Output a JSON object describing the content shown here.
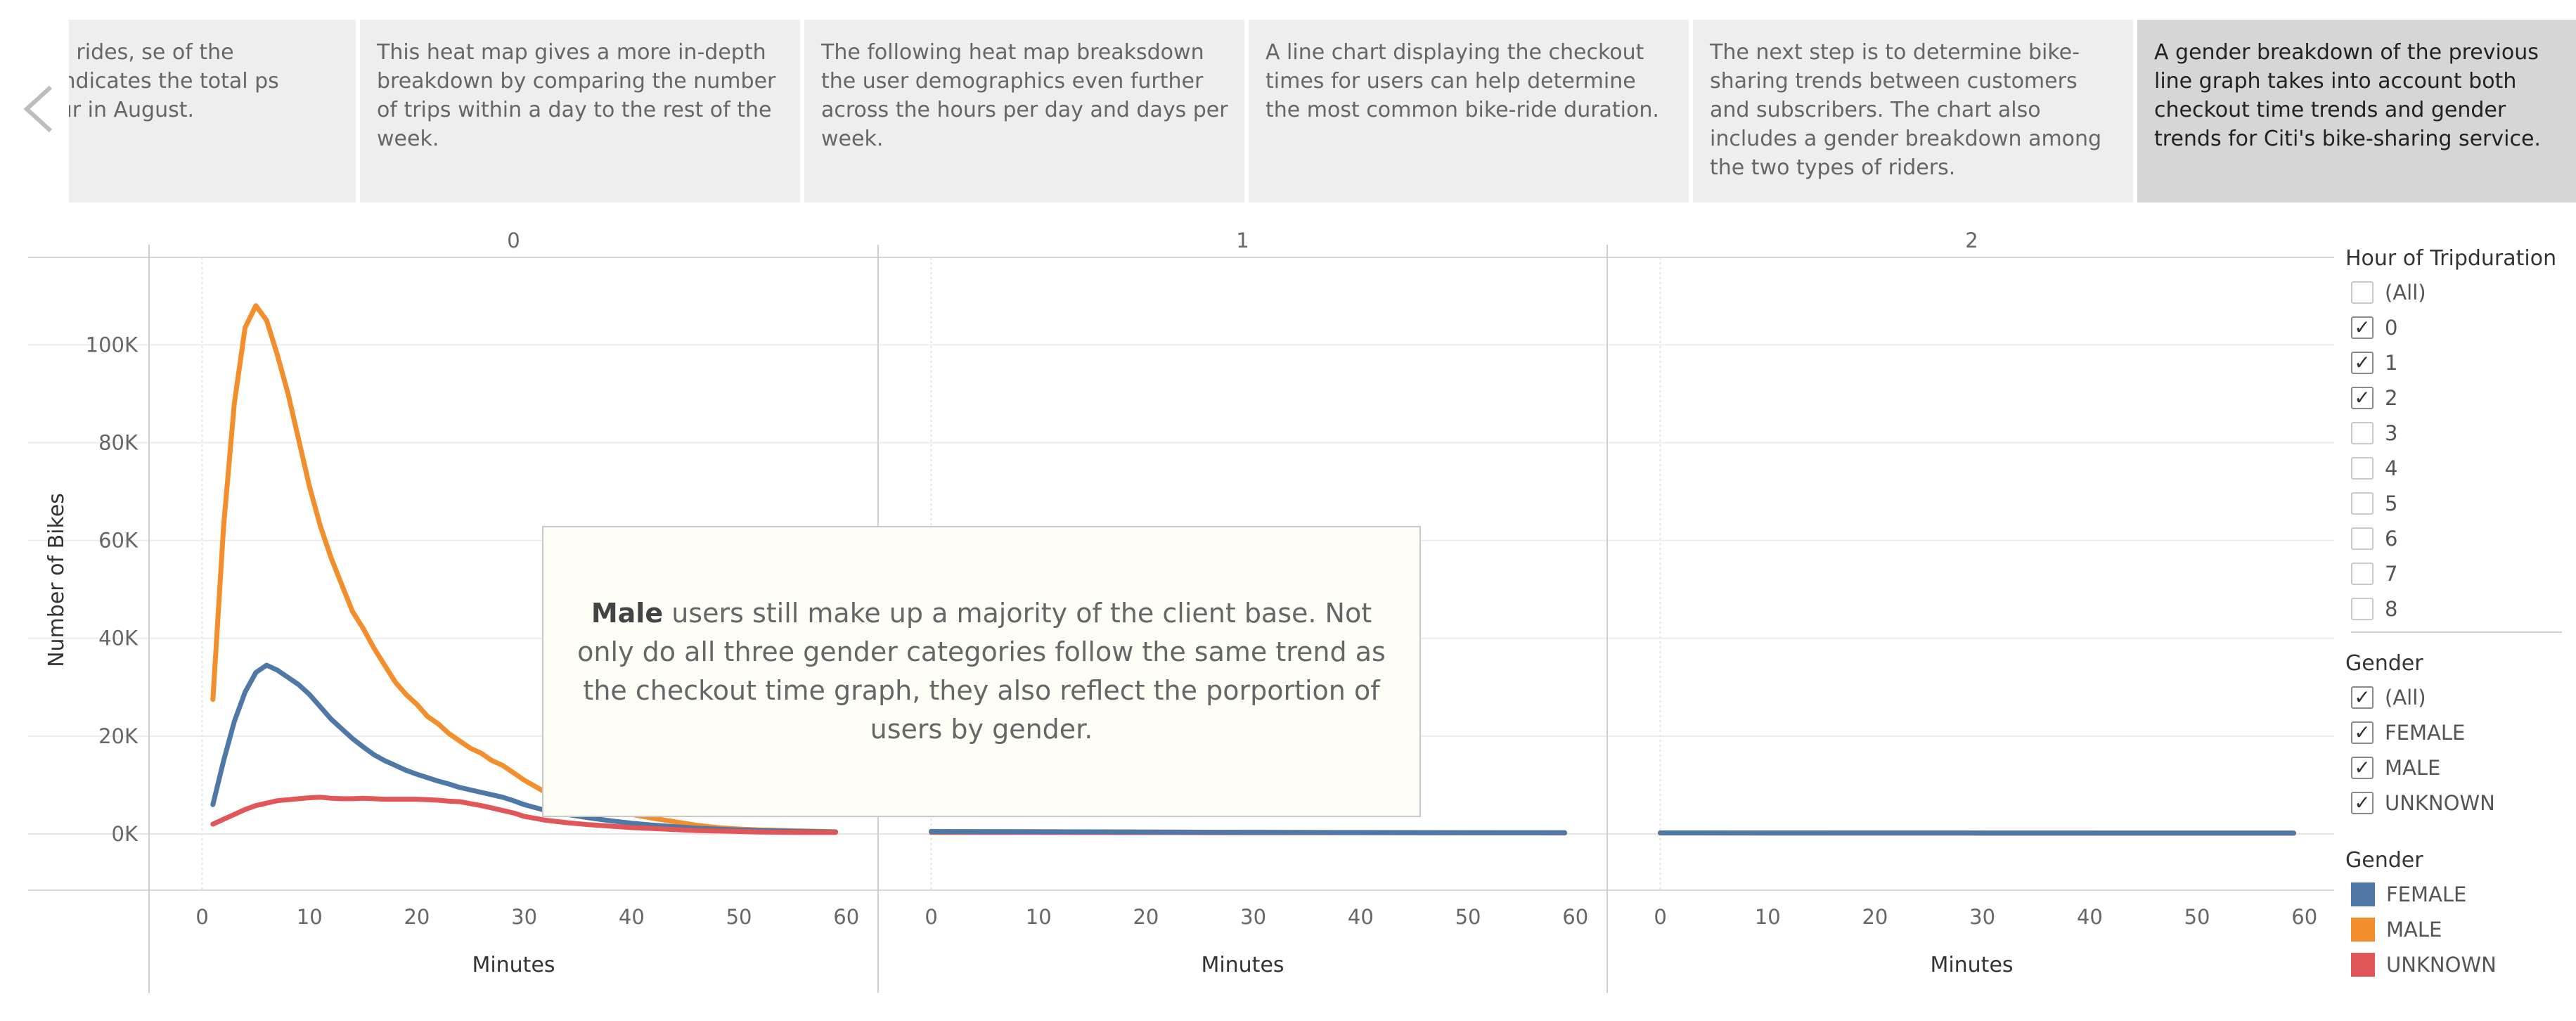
{
  "story": {
    "points": [
      {
        "text": "perfect time for bike rides, se of the comfortable graph indicates the total ps made at a given hour in August.",
        "active": false
      },
      {
        "text": "This heat map gives a more in-depth breakdown by comparing the number of trips within a day to the rest of the week.",
        "active": false
      },
      {
        "text": "The following heat map breaksdown the user demographics even further across the hours per day and days per week.",
        "active": false
      },
      {
        "text": "A line chart displaying the checkout times for users can help determine the most common bike-ride duration.",
        "active": false
      },
      {
        "text": "The next step is to determine bike-sharing trends between customers and subscribers. The chart also includes a gender breakdown among the two types of riders.",
        "active": false
      },
      {
        "text": "A gender breakdown of the previous line graph takes into account both checkout time trends and gender trends for Citi's bike-sharing service.",
        "active": true
      }
    ],
    "prev_icon": "chevron-left-icon"
  },
  "annotation": {
    "bold": "Male",
    "text": " users still make up a majority of the client base. Not only do all three gender categories follow the same trend as the checkout time graph, they also reflect the porportion of users by gender."
  },
  "filters": {
    "hour": {
      "title": "Hour of Tripduration",
      "items": [
        {
          "label": "(All)",
          "checked": false
        },
        {
          "label": "0",
          "checked": true
        },
        {
          "label": "1",
          "checked": true
        },
        {
          "label": "2",
          "checked": true
        },
        {
          "label": "3",
          "checked": false
        },
        {
          "label": "4",
          "checked": false
        },
        {
          "label": "5",
          "checked": false
        },
        {
          "label": "6",
          "checked": false
        },
        {
          "label": "7",
          "checked": false
        },
        {
          "label": "8",
          "checked": false
        }
      ]
    },
    "gender": {
      "title": "Gender",
      "items": [
        {
          "label": "(All)",
          "checked": true
        },
        {
          "label": "FEMALE",
          "checked": true
        },
        {
          "label": "MALE",
          "checked": true
        },
        {
          "label": "UNKNOWN",
          "checked": true
        }
      ]
    }
  },
  "legend": {
    "title": "Gender",
    "items": [
      {
        "label": "FEMALE",
        "color": "#4e79a7"
      },
      {
        "label": "MALE",
        "color": "#f28e2b"
      },
      {
        "label": "UNKNOWN",
        "color": "#e15759"
      }
    ]
  },
  "chart_data": {
    "type": "line",
    "ylabel": "Number of Bikes",
    "xlabel": "Minutes",
    "ylim": [
      0,
      115000
    ],
    "y_ticks": [
      0,
      20000,
      40000,
      60000,
      80000,
      100000
    ],
    "y_tick_labels": [
      "0K",
      "20K",
      "40K",
      "60K",
      "80K",
      "100K"
    ],
    "x_ticks": [
      0,
      10,
      20,
      30,
      40,
      50,
      60
    ],
    "xlim": [
      -2,
      61
    ],
    "grid": true,
    "panels": [
      {
        "header": "0",
        "series": [
          {
            "name": "MALE",
            "color": "#f28e2b",
            "x": [
              1,
              2,
              3,
              4,
              5,
              6,
              7,
              8,
              9,
              10,
              11,
              12,
              13,
              14,
              15,
              16,
              17,
              18,
              19,
              20,
              21,
              22,
              23,
              24,
              25,
              26,
              27,
              28,
              29,
              30,
              32,
              34,
              36,
              38,
              40,
              42,
              44,
              46,
              48,
              50,
              52,
              54,
              56,
              58,
              59
            ],
            "y": [
              27500,
              63000,
              88000,
              103500,
              108000,
              105000,
              98000,
              90000,
              80500,
              71000,
              63000,
              56500,
              51000,
              45500,
              42000,
              38000,
              34500,
              31000,
              28500,
              26500,
              24000,
              22500,
              20500,
              19000,
              17500,
              16500,
              15000,
              14000,
              12500,
              11000,
              8500,
              7000,
              6000,
              5000,
              4000,
              3200,
              2500,
              1800,
              1300,
              1000,
              800,
              700,
              600,
              500,
              450
            ]
          },
          {
            "name": "FEMALE",
            "color": "#4e79a7",
            "x": [
              1,
              2,
              3,
              4,
              5,
              6,
              7,
              8,
              9,
              10,
              11,
              12,
              13,
              14,
              15,
              16,
              17,
              18,
              19,
              20,
              21,
              22,
              23,
              24,
              25,
              26,
              27,
              28,
              29,
              30,
              32,
              34,
              36,
              38,
              40,
              42,
              44,
              46,
              48,
              50,
              52,
              54,
              56,
              58,
              59
            ],
            "y": [
              6000,
              15000,
              23000,
              29000,
              33000,
              34500,
              33500,
              32000,
              30500,
              28500,
              26000,
              23500,
              21500,
              19500,
              17800,
              16200,
              15000,
              14000,
              13000,
              12200,
              11500,
              10800,
              10200,
              9500,
              9000,
              8500,
              8000,
              7500,
              6800,
              6000,
              4800,
              4000,
              3300,
              2700,
              2200,
              1800,
              1500,
              1200,
              1000,
              800,
              700,
              600,
              500,
              450,
              400
            ]
          },
          {
            "name": "UNKNOWN",
            "color": "#e15759",
            "x": [
              1,
              2,
              3,
              4,
              5,
              6,
              7,
              8,
              9,
              10,
              11,
              12,
              13,
              14,
              15,
              16,
              17,
              18,
              19,
              20,
              21,
              22,
              23,
              24,
              25,
              26,
              27,
              28,
              29,
              30,
              32,
              34,
              36,
              38,
              40,
              42,
              44,
              46,
              48,
              50,
              52,
              54,
              56,
              58,
              59
            ],
            "y": [
              2000,
              3000,
              4000,
              5000,
              5800,
              6300,
              6800,
              7000,
              7200,
              7400,
              7500,
              7300,
              7200,
              7200,
              7300,
              7200,
              7100,
              7100,
              7100,
              7100,
              7000,
              6900,
              6700,
              6600,
              6200,
              5800,
              5300,
              4800,
              4300,
              3600,
              2800,
              2300,
              1900,
              1600,
              1300,
              1100,
              900,
              700,
              600,
              500,
              400,
              350,
              300,
              300,
              300
            ]
          }
        ]
      },
      {
        "header": "1",
        "series": [
          {
            "name": "MALE",
            "color": "#f28e2b",
            "x": [
              0,
              10,
              20,
              30,
              40,
              50,
              59
            ],
            "y": [
              520,
              460,
              400,
              340,
              300,
              270,
              250
            ]
          },
          {
            "name": "UNKNOWN",
            "color": "#e15759",
            "x": [
              0,
              10,
              20,
              30,
              40,
              50,
              59
            ],
            "y": [
              350,
              320,
              290,
              260,
              240,
              220,
              200
            ]
          },
          {
            "name": "FEMALE",
            "color": "#4e79a7",
            "x": [
              0,
              10,
              20,
              30,
              40,
              50,
              59
            ],
            "y": [
              500,
              440,
              390,
              330,
              290,
              260,
              240
            ]
          }
        ]
      },
      {
        "header": "2",
        "series": [
          {
            "name": "MALE",
            "color": "#f28e2b",
            "x": [
              0,
              10,
              20,
              30,
              40,
              50,
              59
            ],
            "y": [
              220,
              210,
              200,
              190,
              185,
              180,
              175
            ]
          },
          {
            "name": "UNKNOWN",
            "color": "#e15759",
            "x": [
              0,
              10,
              20,
              30,
              40,
              50,
              59
            ],
            "y": [
              200,
              190,
              180,
              175,
              170,
              165,
              160
            ]
          },
          {
            "name": "FEMALE",
            "color": "#4e79a7",
            "x": [
              0,
              10,
              20,
              30,
              40,
              50,
              59
            ],
            "y": [
              210,
              200,
              195,
              185,
              180,
              175,
              170
            ]
          }
        ]
      }
    ]
  }
}
